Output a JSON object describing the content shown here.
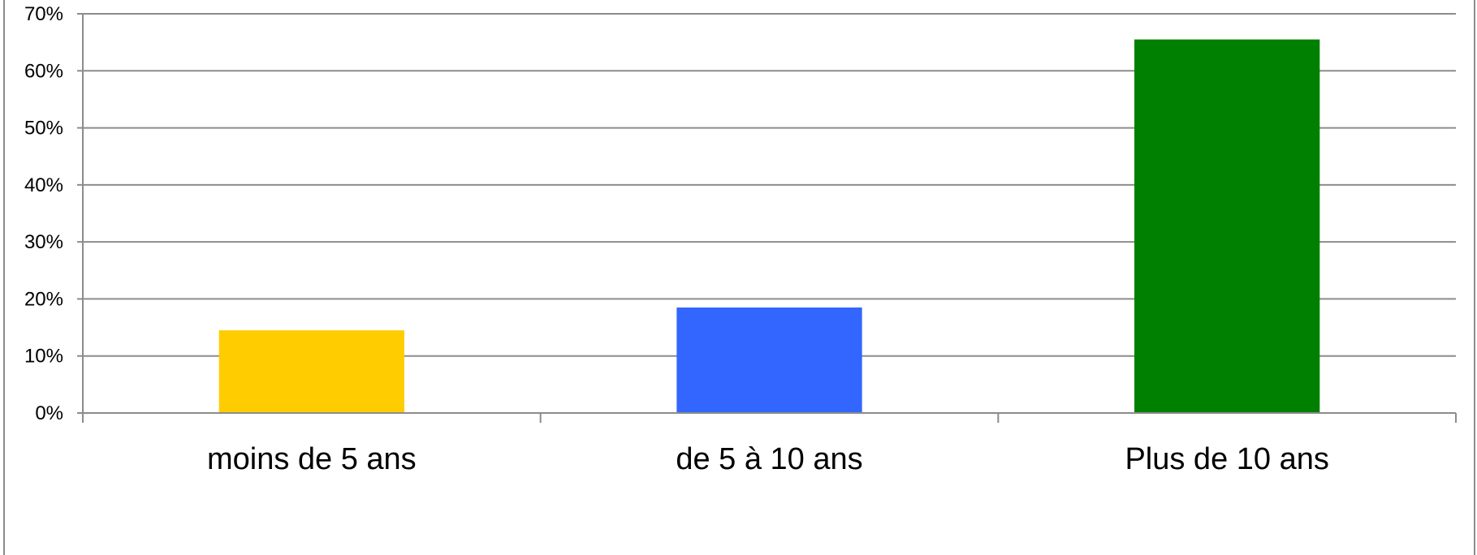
{
  "chart_data": {
    "type": "bar",
    "categories": [
      "moins de 5 ans",
      "de 5 à 10 ans",
      "Plus de 10 ans"
    ],
    "values": [
      0.145,
      0.185,
      0.655
    ],
    "bar_colors": [
      "#ffcc00",
      "#3366ff",
      "#008000"
    ],
    "ylim": [
      0,
      0.7
    ],
    "yticks": [
      0,
      0.1,
      0.2,
      0.3,
      0.4,
      0.5,
      0.6,
      0.7
    ],
    "ytick_labels": [
      "0%",
      "10%",
      "20%",
      "30%",
      "40%",
      "50%",
      "60%",
      "70%"
    ],
    "grid": true,
    "legend": "none",
    "title": "",
    "xlabel": "",
    "ylabel": ""
  }
}
